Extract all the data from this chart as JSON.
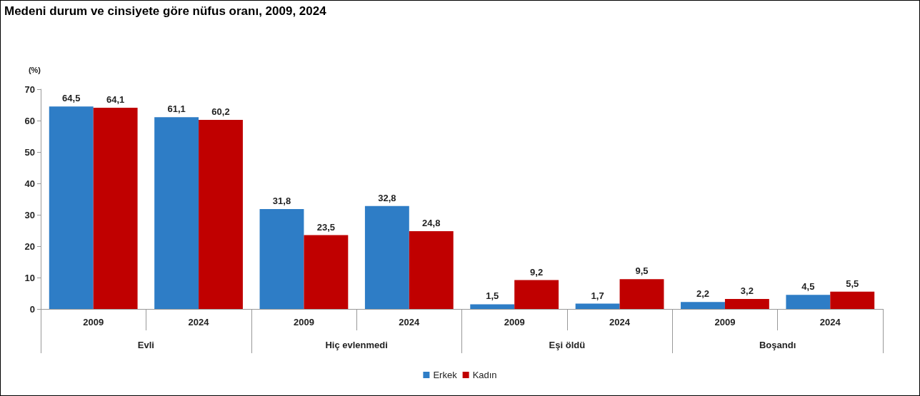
{
  "chart_data": {
    "type": "bar",
    "title": "Medeni durum ve cinsiyete göre nüfus oranı, 2009, 2024",
    "ylabel": "(%)",
    "categories": [
      "2009",
      "2024",
      "2009",
      "2024",
      "2009",
      "2024",
      "2009",
      "2024"
    ],
    "annotations": [
      "Evli",
      "Hiç evlenmedi",
      "Eşi öldü",
      "Boşandı"
    ],
    "series": [
      {
        "name": "Erkek",
        "color": "#2e7dc6",
        "values": [
          64.5,
          61.1,
          31.8,
          32.8,
          1.5,
          1.7,
          2.2,
          4.5
        ],
        "value_labels": [
          "64,5",
          "61,1",
          "31,8",
          "32,8",
          "1,5",
          "1,7",
          "2,2",
          "4,5"
        ]
      },
      {
        "name": "Kadın",
        "color": "#c00000",
        "values": [
          64.1,
          60.2,
          23.5,
          24.8,
          9.2,
          9.5,
          3.2,
          5.5
        ],
        "value_labels": [
          "64,1",
          "60,2",
          "23,5",
          "24,8",
          "9,2",
          "9,5",
          "3,2",
          "5,5"
        ]
      }
    ],
    "ylim": [
      0,
      70
    ],
    "yticks": [
      0,
      10,
      20,
      30,
      40,
      50,
      60,
      70
    ],
    "legend": "bottom",
    "grid": false
  }
}
